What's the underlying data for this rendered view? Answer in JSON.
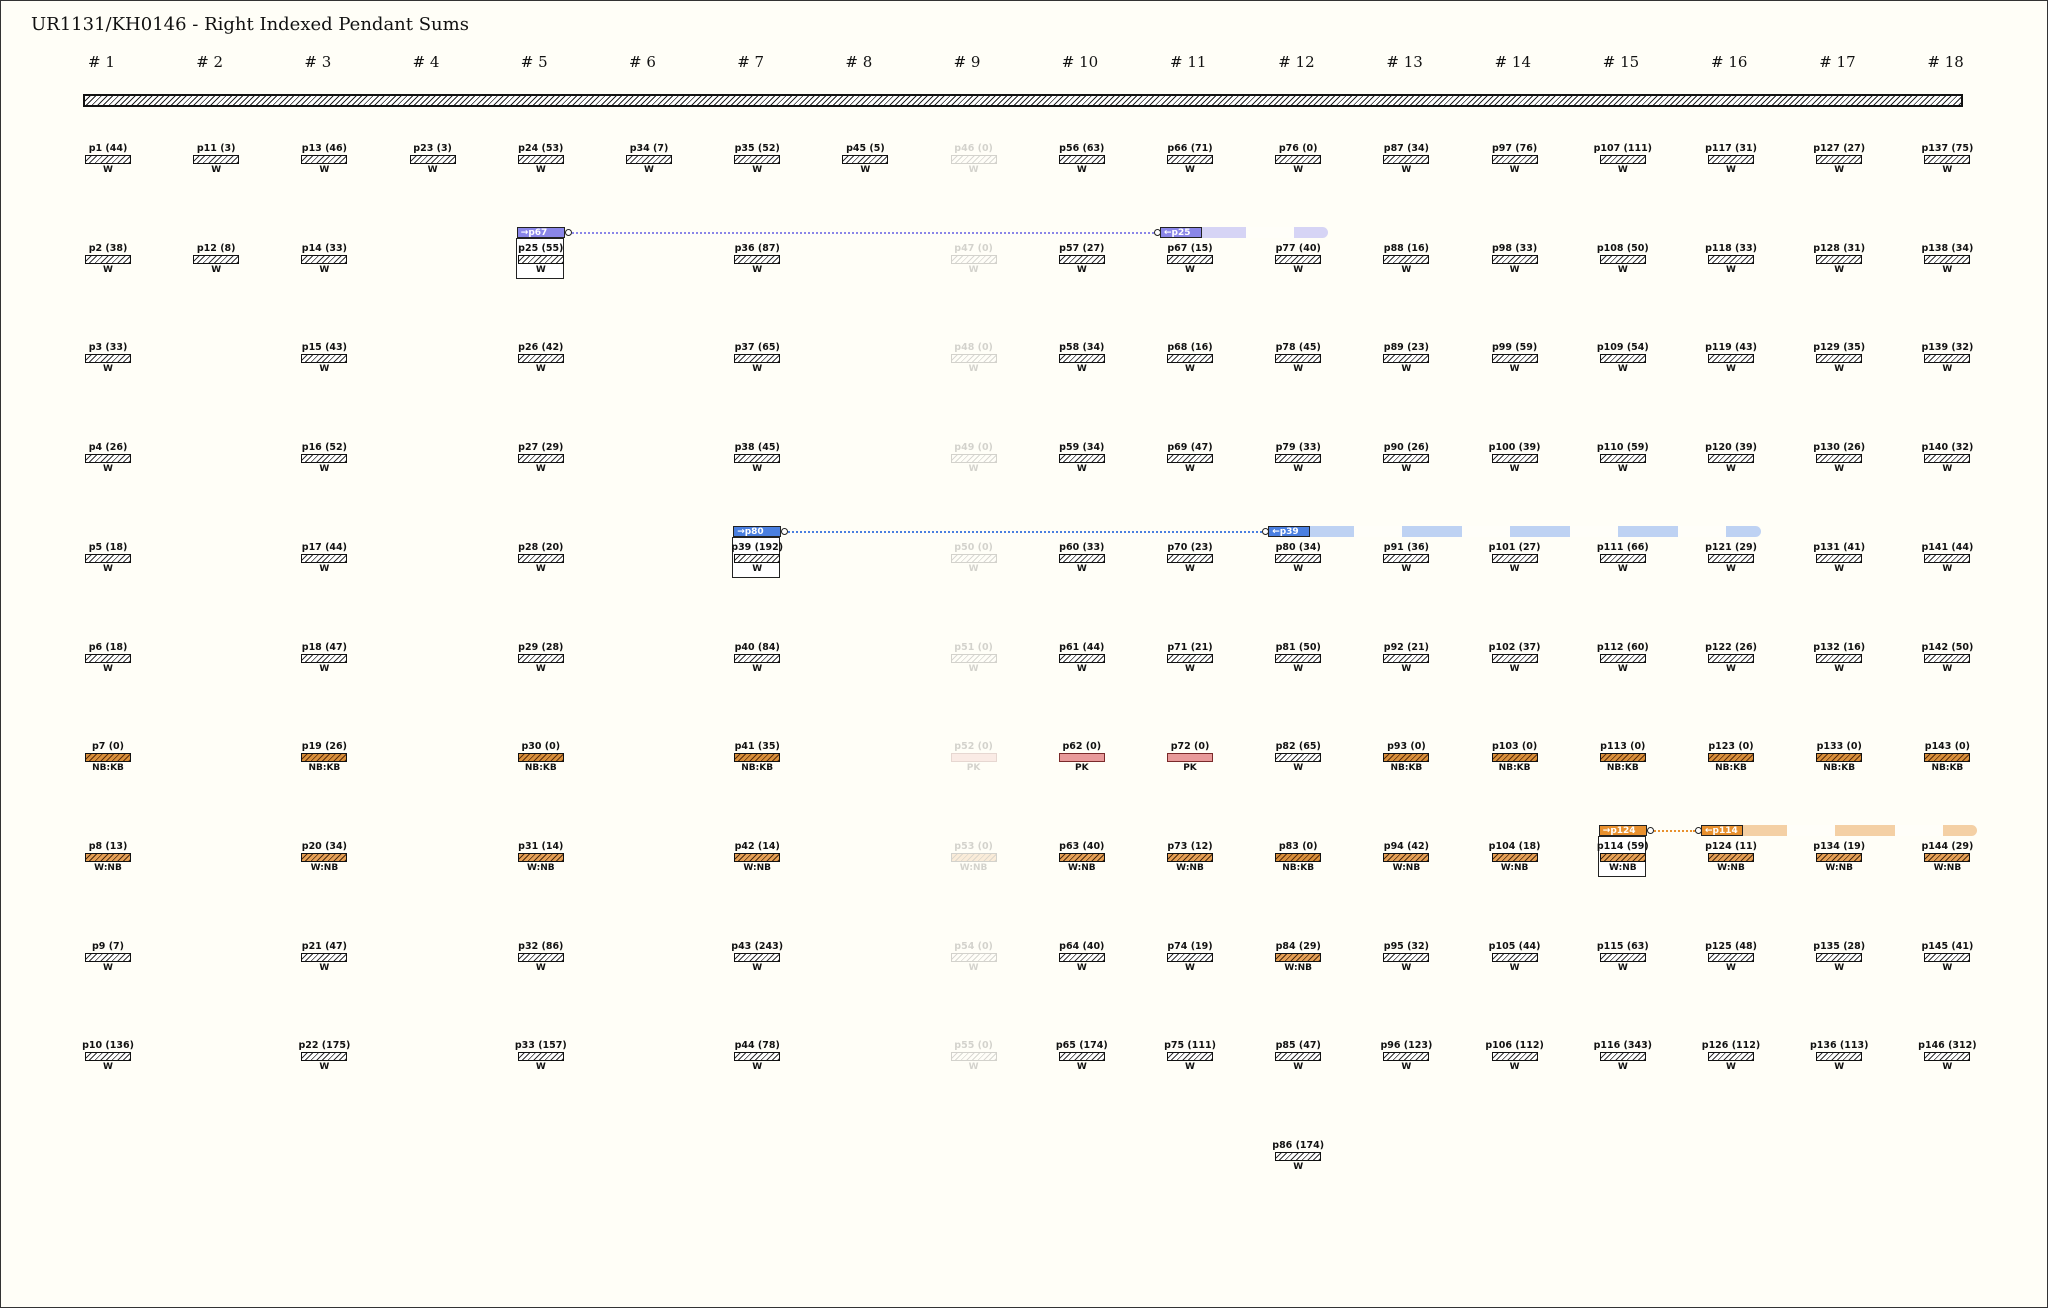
{
  "title": "UR1131/KH0146 - Right Indexed Pendant Sums",
  "columns": [
    "# 1",
    "# 2",
    "# 3",
    "# 4",
    "# 5",
    "# 6",
    "# 7",
    "# 8",
    "# 9",
    "# 10",
    "# 11",
    "# 12",
    "# 13",
    "# 14",
    "# 15",
    "# 16",
    "# 17",
    "# 18"
  ],
  "pendants": [
    {
      "label": "p1 (44)",
      "colour": "W",
      "col": 0,
      "row": 0
    },
    {
      "label": "p2 (38)",
      "colour": "W",
      "col": 0,
      "row": 1
    },
    {
      "label": "p3 (33)",
      "colour": "W",
      "col": 0,
      "row": 2
    },
    {
      "label": "p4 (26)",
      "colour": "W",
      "col": 0,
      "row": 3
    },
    {
      "label": "p5 (18)",
      "colour": "W",
      "col": 0,
      "row": 4
    },
    {
      "label": "p6 (18)",
      "colour": "W",
      "col": 0,
      "row": 5
    },
    {
      "label": "p7 (0)",
      "colour": "NB:KB",
      "col": 0,
      "row": 6,
      "style": "kb"
    },
    {
      "label": "p8 (13)",
      "colour": "W:NB",
      "col": 0,
      "row": 7,
      "style": "nbkb"
    },
    {
      "label": "p9 (7)",
      "colour": "W",
      "col": 0,
      "row": 8
    },
    {
      "label": "p10 (136)",
      "colour": "W",
      "col": 0,
      "row": 9
    },
    {
      "label": "p11 (3)",
      "colour": "W",
      "col": 1,
      "row": 0
    },
    {
      "label": "p12 (8)",
      "colour": "W",
      "col": 1,
      "row": 1
    },
    {
      "label": "p13 (46)",
      "colour": "W",
      "col": 2,
      "row": 0
    },
    {
      "label": "p14 (33)",
      "colour": "W",
      "col": 2,
      "row": 1
    },
    {
      "label": "p15 (43)",
      "colour": "W",
      "col": 2,
      "row": 2
    },
    {
      "label": "p16 (52)",
      "colour": "W",
      "col": 2,
      "row": 3
    },
    {
      "label": "p17 (44)",
      "colour": "W",
      "col": 2,
      "row": 4
    },
    {
      "label": "p18 (47)",
      "colour": "W",
      "col": 2,
      "row": 5
    },
    {
      "label": "p19 (26)",
      "colour": "NB:KB",
      "col": 2,
      "row": 6,
      "style": "kb"
    },
    {
      "label": "p20 (34)",
      "colour": "W:NB",
      "col": 2,
      "row": 7,
      "style": "nbkb"
    },
    {
      "label": "p21 (47)",
      "colour": "W",
      "col": 2,
      "row": 8
    },
    {
      "label": "p22 (175)",
      "colour": "W",
      "col": 2,
      "row": 9
    },
    {
      "label": "p23 (3)",
      "colour": "W",
      "col": 3,
      "row": 0
    },
    {
      "label": "p24 (53)",
      "colour": "W",
      "col": 4,
      "row": 0
    },
    {
      "label": "p25 (55)",
      "colour": "W",
      "col": 4,
      "row": 1,
      "boxed": true
    },
    {
      "label": "p26 (42)",
      "colour": "W",
      "col": 4,
      "row": 2
    },
    {
      "label": "p27 (29)",
      "colour": "W",
      "col": 4,
      "row": 3
    },
    {
      "label": "p28 (20)",
      "colour": "W",
      "col": 4,
      "row": 4
    },
    {
      "label": "p29 (28)",
      "colour": "W",
      "col": 4,
      "row": 5
    },
    {
      "label": "p30 (0)",
      "colour": "NB:KB",
      "col": 4,
      "row": 6,
      "style": "kb"
    },
    {
      "label": "p31 (14)",
      "colour": "W:NB",
      "col": 4,
      "row": 7,
      "style": "nbkb"
    },
    {
      "label": "p32 (86)",
      "colour": "W",
      "col": 4,
      "row": 8
    },
    {
      "label": "p33 (157)",
      "colour": "W",
      "col": 4,
      "row": 9
    },
    {
      "label": "p34 (7)",
      "colour": "W",
      "col": 5,
      "row": 0
    },
    {
      "label": "p35 (52)",
      "colour": "W",
      "col": 6,
      "row": 0
    },
    {
      "label": "p36 (87)",
      "colour": "W",
      "col": 6,
      "row": 1
    },
    {
      "label": "p37 (65)",
      "colour": "W",
      "col": 6,
      "row": 2
    },
    {
      "label": "p38 (45)",
      "colour": "W",
      "col": 6,
      "row": 3
    },
    {
      "label": "p39 (192)",
      "colour": "W",
      "col": 6,
      "row": 4,
      "boxed": true
    },
    {
      "label": "p40 (84)",
      "colour": "W",
      "col": 6,
      "row": 5
    },
    {
      "label": "p41 (35)",
      "colour": "NB:KB",
      "col": 6,
      "row": 6,
      "style": "kb"
    },
    {
      "label": "p42 (14)",
      "colour": "W:NB",
      "col": 6,
      "row": 7,
      "style": "nbkb"
    },
    {
      "label": "p43 (243)",
      "colour": "W",
      "col": 6,
      "row": 8
    },
    {
      "label": "p44 (78)",
      "colour": "W",
      "col": 6,
      "row": 9
    },
    {
      "label": "p45 (5)",
      "colour": "W",
      "col": 7,
      "row": 0
    },
    {
      "label": "p46 (0)",
      "colour": "W",
      "col": 8,
      "row": 0,
      "ghost": true
    },
    {
      "label": "p47 (0)",
      "colour": "W",
      "col": 8,
      "row": 1,
      "ghost": true
    },
    {
      "label": "p48 (0)",
      "colour": "W",
      "col": 8,
      "row": 2,
      "ghost": true
    },
    {
      "label": "p49 (0)",
      "colour": "W",
      "col": 8,
      "row": 3,
      "ghost": true
    },
    {
      "label": "p50 (0)",
      "colour": "W",
      "col": 8,
      "row": 4,
      "ghost": true
    },
    {
      "label": "p51 (0)",
      "colour": "W",
      "col": 8,
      "row": 5,
      "ghost": true
    },
    {
      "label": "p52 (0)",
      "colour": "PK",
      "col": 8,
      "row": 6,
      "ghost": true,
      "style": "pk"
    },
    {
      "label": "p53 (0)",
      "colour": "W:NB",
      "col": 8,
      "row": 7,
      "ghost": true,
      "style": "nbkb"
    },
    {
      "label": "p54 (0)",
      "colour": "W",
      "col": 8,
      "row": 8,
      "ghost": true
    },
    {
      "label": "p55 (0)",
      "colour": "W",
      "col": 8,
      "row": 9,
      "ghost": true
    },
    {
      "label": "p56 (63)",
      "colour": "W",
      "col": 9,
      "row": 0
    },
    {
      "label": "p57 (27)",
      "colour": "W",
      "col": 9,
      "row": 1
    },
    {
      "label": "p58 (34)",
      "colour": "W",
      "col": 9,
      "row": 2
    },
    {
      "label": "p59 (34)",
      "colour": "W",
      "col": 9,
      "row": 3
    },
    {
      "label": "p60 (33)",
      "colour": "W",
      "col": 9,
      "row": 4
    },
    {
      "label": "p61 (44)",
      "colour": "W",
      "col": 9,
      "row": 5
    },
    {
      "label": "p62 (0)",
      "colour": "PK",
      "col": 9,
      "row": 6,
      "style": "pk"
    },
    {
      "label": "p63 (40)",
      "colour": "W:NB",
      "col": 9,
      "row": 7,
      "style": "nbkb"
    },
    {
      "label": "p64 (40)",
      "colour": "W",
      "col": 9,
      "row": 8
    },
    {
      "label": "p65 (174)",
      "colour": "W",
      "col": 9,
      "row": 9
    },
    {
      "label": "p66 (71)",
      "colour": "W",
      "col": 10,
      "row": 0
    },
    {
      "label": "p67 (15)",
      "colour": "W",
      "col": 10,
      "row": 1
    },
    {
      "label": "p68 (16)",
      "colour": "W",
      "col": 10,
      "row": 2
    },
    {
      "label": "p69 (47)",
      "colour": "W",
      "col": 10,
      "row": 3
    },
    {
      "label": "p70 (23)",
      "colour": "W",
      "col": 10,
      "row": 4
    },
    {
      "label": "p71 (21)",
      "colour": "W",
      "col": 10,
      "row": 5
    },
    {
      "label": "p72 (0)",
      "colour": "PK",
      "col": 10,
      "row": 6,
      "style": "pk"
    },
    {
      "label": "p73 (12)",
      "colour": "W:NB",
      "col": 10,
      "row": 7,
      "style": "nbkb"
    },
    {
      "label": "p74 (19)",
      "colour": "W",
      "col": 10,
      "row": 8
    },
    {
      "label": "p75 (111)",
      "colour": "W",
      "col": 10,
      "row": 9
    },
    {
      "label": "p76 (0)",
      "colour": "W",
      "col": 11,
      "row": 0
    },
    {
      "label": "p77 (40)",
      "colour": "W",
      "col": 11,
      "row": 1
    },
    {
      "label": "p78 (45)",
      "colour": "W",
      "col": 11,
      "row": 2
    },
    {
      "label": "p79 (33)",
      "colour": "W",
      "col": 11,
      "row": 3
    },
    {
      "label": "p80 (34)",
      "colour": "W",
      "col": 11,
      "row": 4
    },
    {
      "label": "p81 (50)",
      "colour": "W",
      "col": 11,
      "row": 5
    },
    {
      "label": "p82 (65)",
      "colour": "W",
      "col": 11,
      "row": 6
    },
    {
      "label": "p83 (0)",
      "colour": "NB:KB",
      "col": 11,
      "row": 7,
      "style": "kb"
    },
    {
      "label": "p84 (29)",
      "colour": "W:NB",
      "col": 11,
      "row": 8,
      "style": "nbkb"
    },
    {
      "label": "p85 (47)",
      "colour": "W",
      "col": 11,
      "row": 9
    },
    {
      "label": "p86 (174)",
      "colour": "W",
      "col": 11,
      "row": 10
    },
    {
      "label": "p87 (34)",
      "colour": "W",
      "col": 12,
      "row": 0
    },
    {
      "label": "p88 (16)",
      "colour": "W",
      "col": 12,
      "row": 1
    },
    {
      "label": "p89 (23)",
      "colour": "W",
      "col": 12,
      "row": 2
    },
    {
      "label": "p90 (26)",
      "colour": "W",
      "col": 12,
      "row": 3
    },
    {
      "label": "p91 (36)",
      "colour": "W",
      "col": 12,
      "row": 4
    },
    {
      "label": "p92 (21)",
      "colour": "W",
      "col": 12,
      "row": 5
    },
    {
      "label": "p93 (0)",
      "colour": "NB:KB",
      "col": 12,
      "row": 6,
      "style": "kb"
    },
    {
      "label": "p94 (42)",
      "colour": "W:NB",
      "col": 12,
      "row": 7,
      "style": "nbkb"
    },
    {
      "label": "p95 (32)",
      "colour": "W",
      "col": 12,
      "row": 8
    },
    {
      "label": "p96 (123)",
      "colour": "W",
      "col": 12,
      "row": 9
    },
    {
      "label": "p97 (76)",
      "colour": "W",
      "col": 13,
      "row": 0
    },
    {
      "label": "p98 (33)",
      "colour": "W",
      "col": 13,
      "row": 1
    },
    {
      "label": "p99 (59)",
      "colour": "W",
      "col": 13,
      "row": 2
    },
    {
      "label": "p100 (39)",
      "colour": "W",
      "col": 13,
      "row": 3
    },
    {
      "label": "p101 (27)",
      "colour": "W",
      "col": 13,
      "row": 4
    },
    {
      "label": "p102 (37)",
      "colour": "W",
      "col": 13,
      "row": 5
    },
    {
      "label": "p103 (0)",
      "colour": "NB:KB",
      "col": 13,
      "row": 6,
      "style": "kb"
    },
    {
      "label": "p104 (18)",
      "colour": "W:NB",
      "col": 13,
      "row": 7,
      "style": "nbkb"
    },
    {
      "label": "p105 (44)",
      "colour": "W",
      "col": 13,
      "row": 8
    },
    {
      "label": "p106 (112)",
      "colour": "W",
      "col": 13,
      "row": 9
    },
    {
      "label": "p107 (111)",
      "colour": "W",
      "col": 14,
      "row": 0
    },
    {
      "label": "p108 (50)",
      "colour": "W",
      "col": 14,
      "row": 1
    },
    {
      "label": "p109 (54)",
      "colour": "W",
      "col": 14,
      "row": 2
    },
    {
      "label": "p110 (59)",
      "colour": "W",
      "col": 14,
      "row": 3
    },
    {
      "label": "p111 (66)",
      "colour": "W",
      "col": 14,
      "row": 4
    },
    {
      "label": "p112 (60)",
      "colour": "W",
      "col": 14,
      "row": 5
    },
    {
      "label": "p113 (0)",
      "colour": "NB:KB",
      "col": 14,
      "row": 6,
      "style": "kb"
    },
    {
      "label": "p114 (59)",
      "colour": "W:NB",
      "col": 14,
      "row": 7,
      "style": "nbkb",
      "boxed": true
    },
    {
      "label": "p115 (63)",
      "colour": "W",
      "col": 14,
      "row": 8
    },
    {
      "label": "p116 (343)",
      "colour": "W",
      "col": 14,
      "row": 9
    },
    {
      "label": "p117 (31)",
      "colour": "W",
      "col": 15,
      "row": 0
    },
    {
      "label": "p118 (33)",
      "colour": "W",
      "col": 15,
      "row": 1
    },
    {
      "label": "p119 (43)",
      "colour": "W",
      "col": 15,
      "row": 2
    },
    {
      "label": "p120 (39)",
      "colour": "W",
      "col": 15,
      "row": 3
    },
    {
      "label": "p121 (29)",
      "colour": "W",
      "col": 15,
      "row": 4
    },
    {
      "label": "p122 (26)",
      "colour": "W",
      "col": 15,
      "row": 5
    },
    {
      "label": "p123 (0)",
      "colour": "NB:KB",
      "col": 15,
      "row": 6,
      "style": "kb"
    },
    {
      "label": "p124 (11)",
      "colour": "W:NB",
      "col": 15,
      "row": 7,
      "style": "nbkb"
    },
    {
      "label": "p125 (48)",
      "colour": "W",
      "col": 15,
      "row": 8
    },
    {
      "label": "p126 (112)",
      "colour": "W",
      "col": 15,
      "row": 9
    },
    {
      "label": "p127 (27)",
      "colour": "W",
      "col": 16,
      "row": 0
    },
    {
      "label": "p128 (31)",
      "colour": "W",
      "col": 16,
      "row": 1
    },
    {
      "label": "p129 (35)",
      "colour": "W",
      "col": 16,
      "row": 2
    },
    {
      "label": "p130 (26)",
      "colour": "W",
      "col": 16,
      "row": 3
    },
    {
      "label": "p131 (41)",
      "colour": "W",
      "col": 16,
      "row": 4
    },
    {
      "label": "p132 (16)",
      "colour": "W",
      "col": 16,
      "row": 5
    },
    {
      "label": "p133 (0)",
      "colour": "NB:KB",
      "col": 16,
      "row": 6,
      "style": "kb"
    },
    {
      "label": "p134 (19)",
      "colour": "W:NB",
      "col": 16,
      "row": 7,
      "style": "nbkb"
    },
    {
      "label": "p135 (28)",
      "colour": "W",
      "col": 16,
      "row": 8
    },
    {
      "label": "p136 (113)",
      "colour": "W",
      "col": 16,
      "row": 9
    },
    {
      "label": "p137 (75)",
      "colour": "W",
      "col": 17,
      "row": 0
    },
    {
      "label": "p138 (34)",
      "colour": "W",
      "col": 17,
      "row": 1
    },
    {
      "label": "p139 (32)",
      "colour": "W",
      "col": 17,
      "row": 2
    },
    {
      "label": "p140 (32)",
      "colour": "W",
      "col": 17,
      "row": 3
    },
    {
      "label": "p141 (44)",
      "colour": "W",
      "col": 17,
      "row": 4
    },
    {
      "label": "p142 (50)",
      "colour": "W",
      "col": 17,
      "row": 5
    },
    {
      "label": "p143 (0)",
      "colour": "NB:KB",
      "col": 17,
      "row": 6,
      "style": "kb"
    },
    {
      "label": "p144 (29)",
      "colour": "W:NB",
      "col": 17,
      "row": 7,
      "style": "nbkb"
    },
    {
      "label": "p145 (41)",
      "colour": "W",
      "col": 17,
      "row": 8
    },
    {
      "label": "p146 (312)",
      "colour": "W",
      "col": 17,
      "row": 9
    }
  ],
  "links": [
    {
      "from_tag": "→p67",
      "to_tag": "←p25",
      "from_col": 4,
      "to_col": 10,
      "row": 1,
      "band_end_col": 11,
      "color": "#8a86e8",
      "band_color": "#c8c6f4"
    },
    {
      "from_tag": "→p80",
      "to_tag": "←p39",
      "from_col": 6,
      "to_col": 11,
      "row": 4,
      "band_end_col": 15,
      "color": "#4a7fe0",
      "band_color": "#a9c4f2"
    },
    {
      "from_tag": "→p124",
      "to_tag": "←p114",
      "from_col": 14,
      "to_col": 15,
      "row": 7,
      "band_end_col": 17,
      "color": "#e8902e",
      "band_color": "#f0c08a"
    }
  ]
}
